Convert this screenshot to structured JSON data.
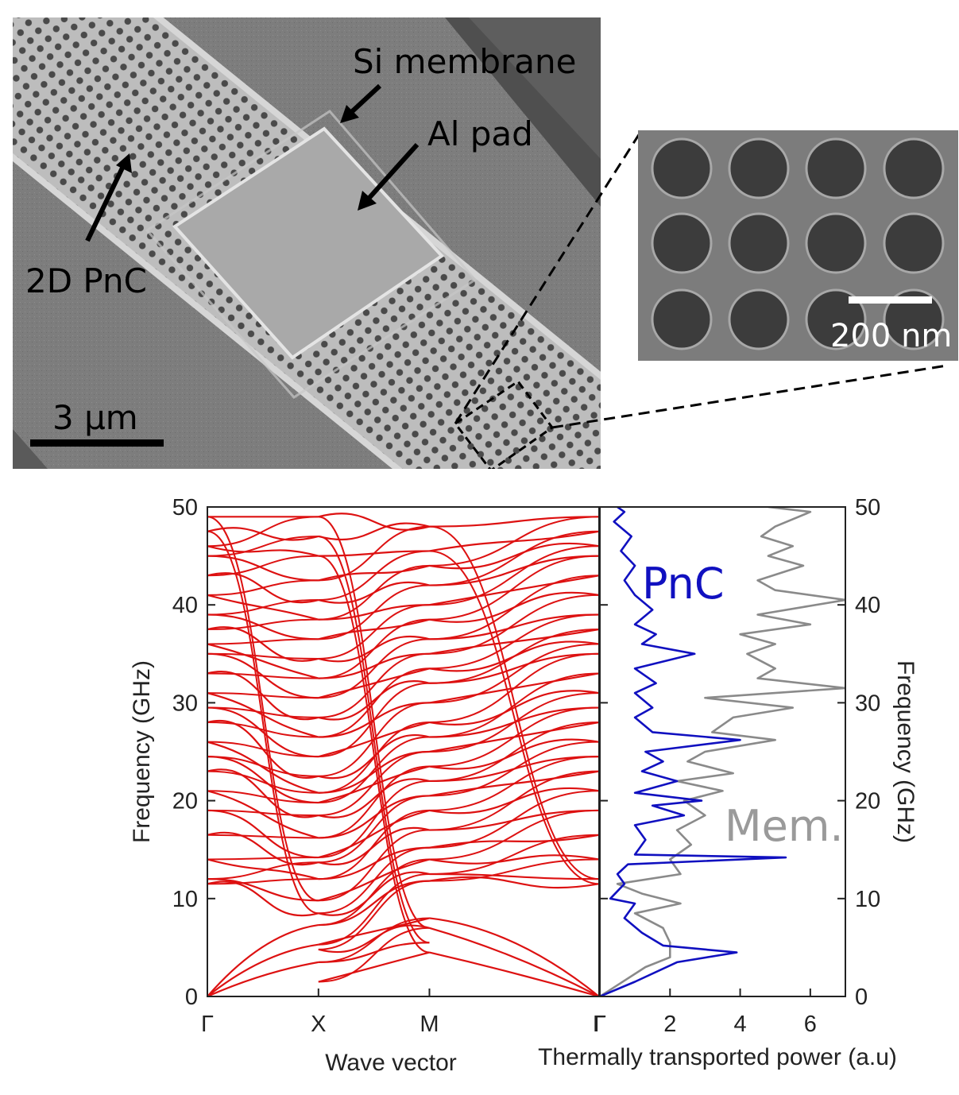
{
  "sem": {
    "labels": {
      "si_membrane": "Si membrane",
      "al_pad": "Al pad",
      "pnc": "2D PnC"
    },
    "scale_bar": "3 μm",
    "inset_scale_bar": "200 nm"
  },
  "chart_data": [
    {
      "type": "line",
      "title": "",
      "xlabel": "Wave vector",
      "ylabel": "Frequency (GHz)",
      "ylim": [
        0,
        50
      ],
      "y_ticks": [
        "0",
        "10",
        "20",
        "30",
        "40",
        "50"
      ],
      "x_ticks": [
        "Γ",
        "X",
        "M",
        "Γ"
      ],
      "series_color": "#dd1111",
      "description_bands": "phononic band structure: dozens of dispersion branches along Γ–X–M–Γ",
      "branches_at_points": {
        "Gamma": [
          0,
          11.5,
          12,
          14,
          16.5,
          19,
          21,
          23,
          24.5,
          26,
          28,
          29.5,
          31,
          33,
          35,
          36,
          37.5,
          39,
          41,
          43,
          45,
          46,
          47.5,
          49
        ],
        "X": [
          1.5,
          3.5,
          4.8,
          5.3,
          7.3,
          8.5,
          9.8,
          12,
          13.7,
          14.2,
          16.2,
          18.5,
          19.8,
          20.8,
          22.5,
          24.5,
          26.5,
          28.5,
          30.5,
          32.5,
          34.5,
          36.5,
          38.5,
          40.5,
          42.5,
          45,
          47,
          49
        ],
        "M": [
          4.5,
          5.5,
          7,
          8,
          11.8,
          12.5,
          14,
          15.2,
          17,
          19,
          20.5,
          22,
          23.5,
          25,
          26.5,
          28,
          30,
          32,
          33.5,
          35,
          36.5,
          38.5,
          40,
          42,
          44,
          45.5,
          48
        ]
      }
    },
    {
      "type": "line",
      "title": "",
      "xlabel": "Thermally transported power (a.u)",
      "ylabel": "Frequency (GHz)",
      "xlim": [
        0,
        7
      ],
      "ylim": [
        0,
        50
      ],
      "x_ticks": [
        "2",
        "4",
        "6"
      ],
      "y_ticks": [
        "0",
        "10",
        "20",
        "30",
        "40",
        "50"
      ],
      "series": [
        {
          "name": "PnC",
          "color": "#1010c0",
          "points": [
            [
              0,
              0
            ],
            [
              1.0,
              1.5
            ],
            [
              2.2,
              3.5
            ],
            [
              3.9,
              4.5
            ],
            [
              1.8,
              5.2
            ],
            [
              1.2,
              6.5
            ],
            [
              0.7,
              8
            ],
            [
              1.0,
              9.5
            ],
            [
              0.3,
              10
            ],
            [
              0.7,
              11.5
            ],
            [
              0.5,
              12.5
            ],
            [
              0.8,
              13.5
            ],
            [
              5.3,
              14.2
            ],
            [
              1.0,
              14.5
            ],
            [
              1.3,
              16
            ],
            [
              1.0,
              17.5
            ],
            [
              2.4,
              18.5
            ],
            [
              1.5,
              19.5
            ],
            [
              2.9,
              20
            ],
            [
              1.0,
              20.8
            ],
            [
              2.2,
              22
            ],
            [
              1.2,
              23
            ],
            [
              1.8,
              24
            ],
            [
              1.3,
              25
            ],
            [
              4.0,
              26.2
            ],
            [
              1.5,
              27
            ],
            [
              1.0,
              28.5
            ],
            [
              1.5,
              29.5
            ],
            [
              1.0,
              31
            ],
            [
              1.6,
              32
            ],
            [
              1.0,
              33.5
            ],
            [
              2.7,
              35
            ],
            [
              1.2,
              36
            ],
            [
              1.6,
              37
            ],
            [
              1.0,
              38
            ],
            [
              1.5,
              39.5
            ],
            [
              1.0,
              41
            ],
            [
              0.7,
              42.5
            ],
            [
              1.0,
              44
            ],
            [
              0.6,
              45.5
            ],
            [
              0.9,
              47
            ],
            [
              0.4,
              48.5
            ],
            [
              0.7,
              49.5
            ],
            [
              0.5,
              50
            ]
          ]
        },
        {
          "name": "Mem.",
          "color": "#8a8a8a",
          "points": [
            [
              0,
              0
            ],
            [
              1.3,
              3.0
            ],
            [
              2.0,
              4.0
            ],
            [
              2.0,
              5.5
            ],
            [
              1.8,
              7.0
            ],
            [
              1.0,
              8.5
            ],
            [
              2.3,
              9.5
            ],
            [
              1.2,
              10.5
            ],
            [
              0.5,
              11.5
            ],
            [
              2.3,
              12.5
            ],
            [
              2.0,
              14
            ],
            [
              2.6,
              15.5
            ],
            [
              2.2,
              17
            ],
            [
              3.0,
              18.5
            ],
            [
              2.4,
              20
            ],
            [
              3.5,
              21
            ],
            [
              2.2,
              22
            ],
            [
              3.8,
              22.8
            ],
            [
              2.5,
              24
            ],
            [
              3.0,
              25
            ],
            [
              5.0,
              26.2
            ],
            [
              3.2,
              27
            ],
            [
              3.8,
              28.5
            ],
            [
              5.5,
              29.5
            ],
            [
              3.0,
              30.5
            ],
            [
              7.0,
              31.5
            ],
            [
              4.5,
              32.5
            ],
            [
              5.0,
              33.5
            ],
            [
              4.2,
              35
            ],
            [
              5.0,
              36
            ],
            [
              4.0,
              37
            ],
            [
              6.0,
              38
            ],
            [
              4.5,
              39
            ],
            [
              7.0,
              40.5
            ],
            [
              5.0,
              41.5
            ],
            [
              4.5,
              42.5
            ],
            [
              5.8,
              44
            ],
            [
              4.8,
              45
            ],
            [
              5.5,
              46
            ],
            [
              4.6,
              47
            ],
            [
              5.0,
              48
            ],
            [
              6.0,
              49.5
            ],
            [
              4.8,
              50
            ]
          ]
        }
      ],
      "annotations": [
        "PnC",
        "Mem."
      ],
      "y_tick_position": "both sides"
    }
  ]
}
